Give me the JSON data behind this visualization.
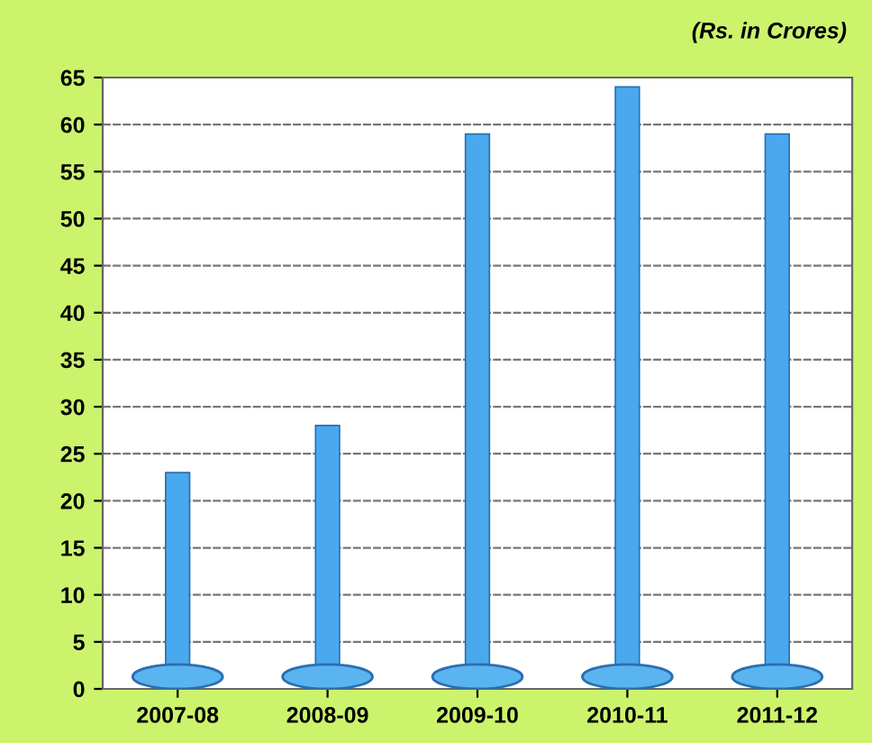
{
  "chart_data": {
    "type": "bar",
    "annotations": [
      "(Rs. in Crores)"
    ],
    "categories": [
      "2007-08",
      "2008-09",
      "2009-10",
      "2010-11",
      "2011-12"
    ],
    "values": [
      23,
      28,
      59,
      64,
      59
    ],
    "color": "#4aa8ee",
    "ylim": [
      0,
      65
    ],
    "yticks": [
      0,
      5,
      10,
      15,
      20,
      25,
      30,
      35,
      40,
      45,
      50,
      55,
      60,
      65
    ],
    "grid": "y"
  }
}
